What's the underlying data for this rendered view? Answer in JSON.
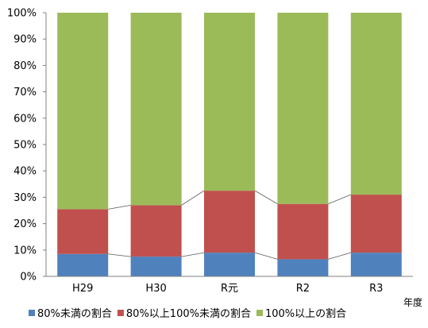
{
  "chart_data": {
    "type": "bar",
    "stacked": "percent",
    "categories": [
      "H29",
      "H30",
      "R元",
      "R2",
      "R3"
    ],
    "series": [
      {
        "name": "80%未満の割合",
        "color": "#4f81bd",
        "values": [
          8.5,
          7.5,
          9.0,
          6.5,
          9.0
        ]
      },
      {
        "name": "80%以上100%未満の割合",
        "color": "#c0504d",
        "values": [
          17.0,
          19.5,
          23.5,
          21.0,
          22.0
        ]
      },
      {
        "name": "100%以上の割合",
        "color": "#9bbb59",
        "values": [
          74.5,
          73.0,
          67.5,
          72.5,
          69.0
        ]
      }
    ],
    "ylim": [
      0,
      100
    ],
    "y_ticks": [
      "0%",
      "10%",
      "20%",
      "30%",
      "40%",
      "50%",
      "60%",
      "70%",
      "80%",
      "90%",
      "100%"
    ],
    "xlabel": "年度",
    "ylabel": "",
    "legend_position": "bottom",
    "series_lines": true,
    "grid": false
  }
}
